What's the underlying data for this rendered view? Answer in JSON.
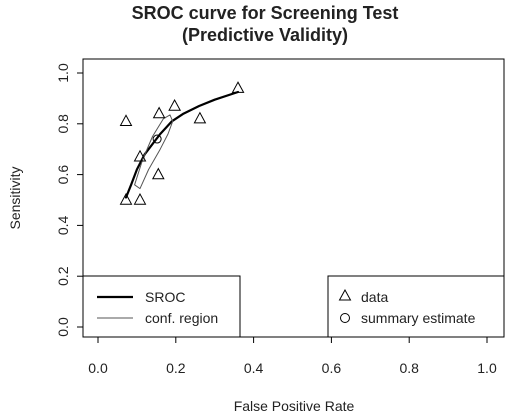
{
  "chart_data": {
    "type": "scatter",
    "title": "SROC curve for Screening Test",
    "subtitle": "(Predictive Validity)",
    "xlabel": "False Positive Rate",
    "ylabel": "Sensitivity",
    "xlim": [
      0.0,
      1.0
    ],
    "ylim": [
      0.0,
      1.0
    ],
    "xticks": [
      "0.0",
      "0.2",
      "0.4",
      "0.6",
      "0.8",
      "1.0"
    ],
    "yticks": [
      "0.0",
      "0.2",
      "0.4",
      "0.6",
      "0.8",
      "1.0"
    ],
    "grid": false,
    "series": [
      {
        "name": "data",
        "marker": "triangle",
        "points": [
          {
            "x": 0.072,
            "y": 0.81
          },
          {
            "x": 0.072,
            "y": 0.5
          },
          {
            "x": 0.108,
            "y": 0.5
          },
          {
            "x": 0.108,
            "y": 0.67
          },
          {
            "x": 0.157,
            "y": 0.84
          },
          {
            "x": 0.155,
            "y": 0.6
          },
          {
            "x": 0.197,
            "y": 0.87
          },
          {
            "x": 0.262,
            "y": 0.82
          },
          {
            "x": 0.36,
            "y": 0.94
          }
        ]
      },
      {
        "name": "summary estimate",
        "marker": "circle",
        "points": [
          {
            "x": 0.152,
            "y": 0.74
          }
        ]
      },
      {
        "name": "SROC",
        "style": "thick-line",
        "color": "#000000",
        "points": [
          {
            "x": 0.072,
            "y": 0.51
          },
          {
            "x": 0.085,
            "y": 0.56
          },
          {
            "x": 0.1,
            "y": 0.62
          },
          {
            "x": 0.12,
            "y": 0.68
          },
          {
            "x": 0.14,
            "y": 0.72
          },
          {
            "x": 0.16,
            "y": 0.76
          },
          {
            "x": 0.19,
            "y": 0.81
          },
          {
            "x": 0.22,
            "y": 0.84
          },
          {
            "x": 0.26,
            "y": 0.87
          },
          {
            "x": 0.3,
            "y": 0.895
          },
          {
            "x": 0.36,
            "y": 0.925
          }
        ]
      },
      {
        "name": "conf. region",
        "style": "thin-line",
        "color": "#555555",
        "points": [
          {
            "x": 0.094,
            "y": 0.56
          },
          {
            "x": 0.115,
            "y": 0.66
          },
          {
            "x": 0.14,
            "y": 0.75
          },
          {
            "x": 0.168,
            "y": 0.82
          },
          {
            "x": 0.185,
            "y": 0.835
          },
          {
            "x": 0.192,
            "y": 0.81
          },
          {
            "x": 0.18,
            "y": 0.76
          },
          {
            "x": 0.16,
            "y": 0.7
          },
          {
            "x": 0.13,
            "y": 0.62
          },
          {
            "x": 0.108,
            "y": 0.545
          },
          {
            "x": 0.094,
            "y": 0.56
          }
        ]
      }
    ],
    "legends": [
      {
        "position": "bottom-left",
        "entries": [
          {
            "label": "SROC",
            "symbol": "thick-line"
          },
          {
            "label": "conf. region",
            "symbol": "thin-line"
          }
        ]
      },
      {
        "position": "bottom-right",
        "entries": [
          {
            "label": "data",
            "symbol": "triangle"
          },
          {
            "label": "summary estimate",
            "symbol": "circle"
          }
        ]
      }
    ]
  }
}
